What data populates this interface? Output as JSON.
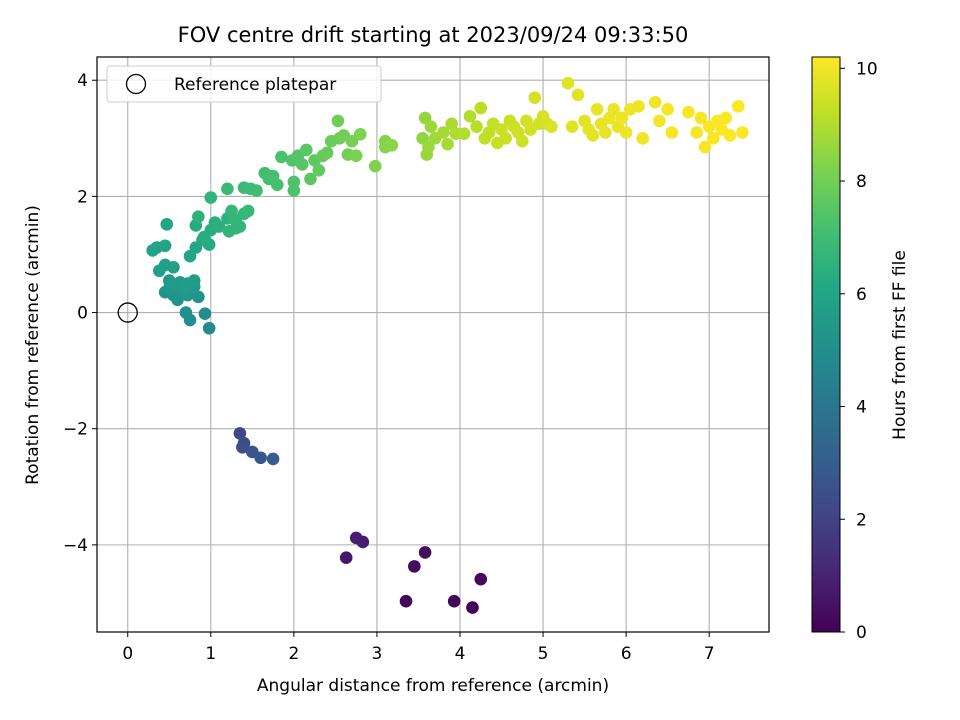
{
  "chart_data": {
    "type": "scatter",
    "title": "FOV centre drift starting at 2023/09/24 09:33:50",
    "xlabel": "Angular distance from reference (arcmin)",
    "ylabel": "Rotation from reference (arcmin)",
    "xlim": [
      -0.37,
      7.72
    ],
    "ylim": [
      -5.5,
      4.4
    ],
    "xticks": [
      0,
      1,
      2,
      3,
      4,
      5,
      6,
      7
    ],
    "yticks": [
      -4,
      -2,
      0,
      2,
      4
    ],
    "grid": true,
    "legend": {
      "placement": "top-left",
      "entries": [
        "Reference platepar"
      ]
    },
    "reference_point": {
      "x": 0,
      "y": 0,
      "label": "Reference platepar"
    },
    "colorbar": {
      "label": "Hours from first FF file",
      "range": [
        0,
        10.2
      ],
      "ticks": [
        0,
        2,
        4,
        6,
        8,
        10
      ],
      "colormap": "viridis"
    },
    "points": [
      [
        4.15,
        -5.08,
        0.05
      ],
      [
        3.93,
        -4.97,
        0.1
      ],
      [
        3.35,
        -4.97,
        0.15
      ],
      [
        4.25,
        -4.59,
        0.2
      ],
      [
        3.45,
        -4.37,
        0.3
      ],
      [
        3.58,
        -4.13,
        0.35
      ],
      [
        2.63,
        -4.22,
        0.6
      ],
      [
        2.83,
        -3.95,
        0.75
      ],
      [
        2.75,
        -3.88,
        0.85
      ],
      [
        1.35,
        -2.08,
        2.1
      ],
      [
        1.4,
        -2.25,
        2.3
      ],
      [
        1.38,
        -2.32,
        2.4
      ],
      [
        1.5,
        -2.4,
        2.6
      ],
      [
        1.6,
        -2.5,
        2.8
      ],
      [
        1.75,
        -2.52,
        3.0
      ],
      [
        0.98,
        -0.27,
        4.8
      ],
      [
        0.93,
        -0.02,
        4.9
      ],
      [
        0.75,
        -0.13,
        5.0
      ],
      [
        0.7,
        0.0,
        5.05
      ],
      [
        0.6,
        0.22,
        5.1
      ],
      [
        0.85,
        0.27,
        5.15
      ],
      [
        0.55,
        0.3,
        5.2
      ],
      [
        0.45,
        0.35,
        5.25
      ],
      [
        0.5,
        0.42,
        5.3
      ],
      [
        0.65,
        0.4,
        5.35
      ],
      [
        0.72,
        0.3,
        5.4
      ],
      [
        0.8,
        0.45,
        5.45
      ],
      [
        0.55,
        0.48,
        5.5
      ],
      [
        0.5,
        0.55,
        5.5
      ],
      [
        0.63,
        0.52,
        5.55
      ],
      [
        0.72,
        0.5,
        5.6
      ],
      [
        0.68,
        0.42,
        5.6
      ],
      [
        0.8,
        0.55,
        5.65
      ],
      [
        0.38,
        0.72,
        5.7
      ],
      [
        0.45,
        0.82,
        5.75
      ],
      [
        0.55,
        0.78,
        5.8
      ],
      [
        0.3,
        1.07,
        5.85
      ],
      [
        0.35,
        1.12,
        5.9
      ],
      [
        0.45,
        1.15,
        5.95
      ],
      [
        0.47,
        1.52,
        6.0
      ],
      [
        0.75,
        0.97,
        6.05
      ],
      [
        0.82,
        1.12,
        6.1
      ],
      [
        0.9,
        1.25,
        6.15
      ],
      [
        0.98,
        1.17,
        6.2
      ],
      [
        0.82,
        1.5,
        6.25
      ],
      [
        0.92,
        1.3,
        6.3
      ],
      [
        1.0,
        1.42,
        6.35
      ],
      [
        1.05,
        1.55,
        6.4
      ],
      [
        1.1,
        1.48,
        6.45
      ],
      [
        1.2,
        1.62,
        6.5
      ],
      [
        0.85,
        1.65,
        6.5
      ],
      [
        1.0,
        1.98,
        6.55
      ],
      [
        1.3,
        1.45,
        6.6
      ],
      [
        1.22,
        1.4,
        6.6
      ],
      [
        1.35,
        1.48,
        6.65
      ],
      [
        1.3,
        1.6,
        6.7
      ],
      [
        1.25,
        1.75,
        6.7
      ],
      [
        1.4,
        1.7,
        6.75
      ],
      [
        1.45,
        1.75,
        6.8
      ],
      [
        1.2,
        2.13,
        6.85
      ],
      [
        1.4,
        2.15,
        6.9
      ],
      [
        1.48,
        2.13,
        6.95
      ],
      [
        1.55,
        2.1,
        7.0
      ],
      [
        1.65,
        2.4,
        7.05
      ],
      [
        1.7,
        2.3,
        7.1
      ],
      [
        1.75,
        2.35,
        7.15
      ],
      [
        1.8,
        2.2,
        7.2
      ],
      [
        1.85,
        2.68,
        7.25
      ],
      [
        2.0,
        2.1,
        7.3
      ],
      [
        2.0,
        2.25,
        7.35
      ],
      [
        1.98,
        2.62,
        7.4
      ],
      [
        2.05,
        2.7,
        7.45
      ],
      [
        2.1,
        2.55,
        7.5
      ],
      [
        2.15,
        2.8,
        7.55
      ],
      [
        2.2,
        2.3,
        7.6
      ],
      [
        2.25,
        2.62,
        7.65
      ],
      [
        2.3,
        2.45,
        7.7
      ],
      [
        2.35,
        2.7,
        7.75
      ],
      [
        2.4,
        2.75,
        7.8
      ],
      [
        2.45,
        2.95,
        7.85
      ],
      [
        2.55,
        3.0,
        7.9
      ],
      [
        2.53,
        3.3,
        7.95
      ],
      [
        2.6,
        3.05,
        8.0
      ],
      [
        2.65,
        2.72,
        8.05
      ],
      [
        2.7,
        2.95,
        8.1
      ],
      [
        2.75,
        2.7,
        8.15
      ],
      [
        2.8,
        3.07,
        8.2
      ],
      [
        2.98,
        2.52,
        8.25
      ],
      [
        3.1,
        2.95,
        8.3
      ],
      [
        3.1,
        2.85,
        8.35
      ],
      [
        3.18,
        2.88,
        8.4
      ],
      [
        3.55,
        3.0,
        8.5
      ],
      [
        3.58,
        3.35,
        8.55
      ],
      [
        3.6,
        2.72,
        8.6
      ],
      [
        3.62,
        2.85,
        8.65
      ],
      [
        3.65,
        3.2,
        8.7
      ],
      [
        3.7,
        3.0,
        8.75
      ],
      [
        3.8,
        3.1,
        8.8
      ],
      [
        3.85,
        2.9,
        8.85
      ],
      [
        3.9,
        3.25,
        8.9
      ],
      [
        3.95,
        3.08,
        8.95
      ],
      [
        4.05,
        3.08,
        9.0
      ],
      [
        4.12,
        3.38,
        9.05
      ],
      [
        4.2,
        3.2,
        9.1
      ],
      [
        4.25,
        3.52,
        9.15
      ],
      [
        4.3,
        3.0,
        9.2
      ],
      [
        4.35,
        3.1,
        9.2
      ],
      [
        4.4,
        3.25,
        9.25
      ],
      [
        4.45,
        2.92,
        9.3
      ],
      [
        4.5,
        3.15,
        9.35
      ],
      [
        4.55,
        3.0,
        9.35
      ],
      [
        4.6,
        3.3,
        9.4
      ],
      [
        4.65,
        3.2,
        9.4
      ],
      [
        4.7,
        3.1,
        9.45
      ],
      [
        4.75,
        2.95,
        9.45
      ],
      [
        4.8,
        3.3,
        9.5
      ],
      [
        4.85,
        3.15,
        9.5
      ],
      [
        4.9,
        3.7,
        9.55
      ],
      [
        4.95,
        3.25,
        9.55
      ],
      [
        5.0,
        3.38,
        9.6
      ],
      [
        5.05,
        3.25,
        9.6
      ],
      [
        5.1,
        3.2,
        9.65
      ],
      [
        5.3,
        3.95,
        9.7
      ],
      [
        5.35,
        3.2,
        9.7
      ],
      [
        5.42,
        3.75,
        9.75
      ],
      [
        5.5,
        3.3,
        9.75
      ],
      [
        5.55,
        3.15,
        9.8
      ],
      [
        5.6,
        3.05,
        9.8
      ],
      [
        5.65,
        3.5,
        9.85
      ],
      [
        5.7,
        3.25,
        9.85
      ],
      [
        5.75,
        3.1,
        9.85
      ],
      [
        5.8,
        3.35,
        9.9
      ],
      [
        5.85,
        3.5,
        9.9
      ],
      [
        5.9,
        3.2,
        9.9
      ],
      [
        5.95,
        3.35,
        9.95
      ],
      [
        6.0,
        3.1,
        9.95
      ],
      [
        6.05,
        3.5,
        9.95
      ],
      [
        6.15,
        3.55,
        10.0
      ],
      [
        6.2,
        3.0,
        10.0
      ],
      [
        6.35,
        3.62,
        10.0
      ],
      [
        6.4,
        3.3,
        10.05
      ],
      [
        6.5,
        3.5,
        10.05
      ],
      [
        6.55,
        3.1,
        10.05
      ],
      [
        6.75,
        3.45,
        10.1
      ],
      [
        6.85,
        3.1,
        10.1
      ],
      [
        6.9,
        3.35,
        10.1
      ],
      [
        6.95,
        2.85,
        10.12
      ],
      [
        7.0,
        3.2,
        10.12
      ],
      [
        7.05,
        3.0,
        10.12
      ],
      [
        7.1,
        3.3,
        10.15
      ],
      [
        7.15,
        3.15,
        10.15
      ],
      [
        7.2,
        3.35,
        10.15
      ],
      [
        7.25,
        3.05,
        10.15
      ],
      [
        7.35,
        3.55,
        10.18
      ],
      [
        7.4,
        3.1,
        10.18
      ]
    ]
  }
}
